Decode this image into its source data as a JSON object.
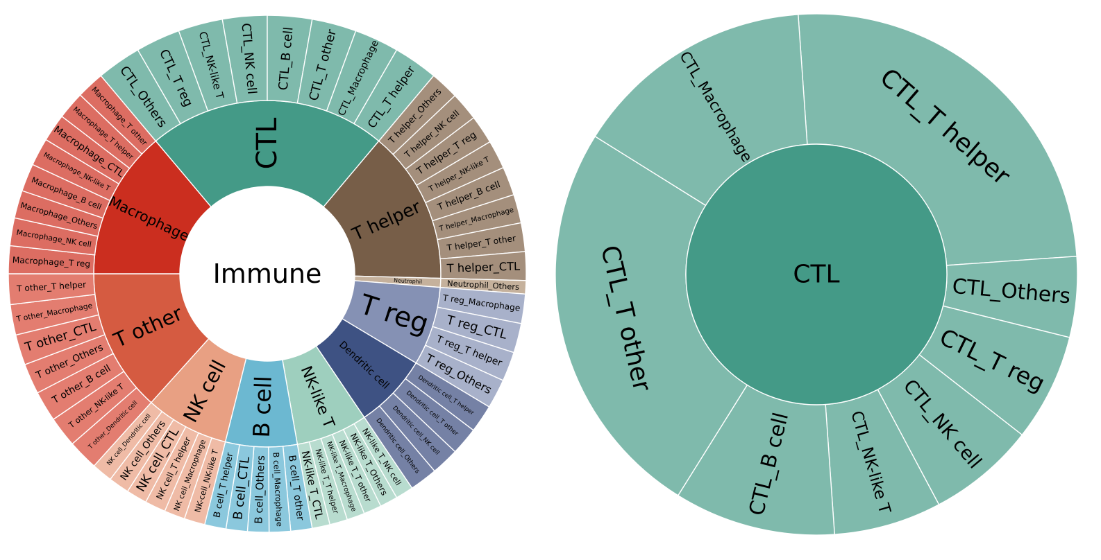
{
  "chart_data": [
    {
      "type": "sunburst",
      "root": {
        "label": "Immune",
        "color": "#ffffff"
      },
      "groups": [
        {
          "name": "CTL",
          "color": "#449a87",
          "light": "#7fbaac",
          "start": 320,
          "end": 400,
          "children": [
            "CTL_Others",
            "CTL_T reg",
            "CTL_NK-like T",
            "CTL_NK cell",
            "CTL_B cell",
            "CTL_T other",
            "CTL_Macrophage",
            "CTL_T helper"
          ]
        },
        {
          "name": "T helper",
          "color": "#775e48",
          "light": "#a48f7c",
          "start": 40,
          "end": 91.5,
          "children": [
            "T helper_Others",
            "T helper_NK cell",
            "T helper_T reg",
            "T helper_NK-like T",
            "T helper_B cell",
            "T helper_Macrophage",
            "T helper_T other",
            "T helper_CTL"
          ]
        },
        {
          "name": "Neutrophil",
          "color": "#c5b19c",
          "light": "#c5b19c",
          "start": 91.5,
          "end": 94.5,
          "children": [
            "Neutrophil_Others"
          ]
        },
        {
          "name": "T reg",
          "color": "#8591b4",
          "light": "#a8b1ca",
          "start": 94.5,
          "end": 121,
          "children": [
            "T reg_Macrophage",
            "T reg_CTL",
            "T reg_T helper",
            "T reg_Others"
          ]
        },
        {
          "name": "Dendritic cell",
          "color": "#3e5283",
          "light": "#7581a5",
          "start": 121,
          "end": 146,
          "children": [
            "Dendritic cell_T helper",
            "Dendritic cell_T other",
            "Dendritic cell_NK cell",
            "Dendritic cell_Others"
          ]
        },
        {
          "name": "NK-like T",
          "color": "#9ecfbe",
          "light": "#b8dccf",
          "start": 146,
          "end": 170,
          "children": [
            "NK-like T_NK cell",
            "NK-like T_Others",
            "NK-like T_T other",
            "NK-like T_Macrophage",
            "NK-like T_T helper",
            "NK-like T_CTL"
          ]
        },
        {
          "name": "B cell",
          "color": "#6cb8d1",
          "light": "#8bc8dd",
          "start": 170,
          "end": 194,
          "children": [
            "B cell_T other",
            "B cell_Macrophage",
            "B cell_Others",
            "B cell_CTL",
            "B cell_T helper"
          ]
        },
        {
          "name": "NK cell",
          "color": "#e8a083",
          "light": "#efbba6",
          "start": 194,
          "end": 222,
          "children": [
            "NK-cell_NK-like T",
            "NK cell_Macrophage",
            "NK cell_T helper",
            "NK cell_CTL",
            "NK cell_Others",
            "NK cell_Dendritic cell"
          ]
        },
        {
          "name": "T other",
          "color": "#d55b41",
          "light": "#e37d70",
          "start": 222,
          "end": 270,
          "children": [
            "T other_Dendritic cell",
            "T other_NK-like T",
            "T other_B cell",
            "T other_Others",
            "T other_CTL",
            "T other_Macrophage",
            "T other_T helper"
          ]
        },
        {
          "name": "Macrophage",
          "color": "#cb2e1f",
          "light": "#dc6d62",
          "start": 270,
          "end": 320,
          "children": [
            "Macrophage_T reg",
            "Macrophage_NK cell",
            "Macrophage_Others",
            "Macrophage_B cell",
            "Macrophage_NK-like T",
            "Macrophage_CTL",
            "Macrophage_T helper",
            "Macrophage_T other"
          ]
        }
      ]
    },
    {
      "type": "sunburst",
      "root": {
        "label": "CTL",
        "color": "#449a87"
      },
      "ring_color": "#7fbaac",
      "children": [
        "CTL_T helper",
        "CTL_Others",
        "CTL_T reg",
        "CTL_NK cell",
        "CTL_NK-like T",
        "CTL_B cell",
        "CTL_T other",
        "CTL_Macrophage"
      ]
    }
  ]
}
